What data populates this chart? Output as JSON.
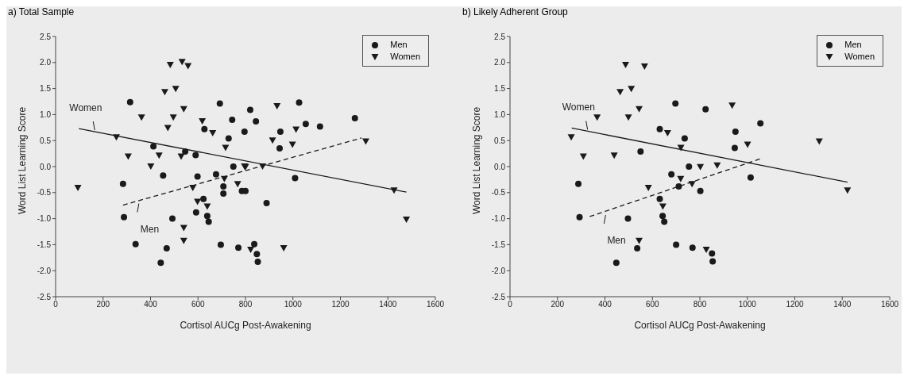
{
  "chart_data": [
    {
      "type": "scatter",
      "title": "a) Total Sample",
      "xlabel": "Cortisol AUCg Post-Awakening",
      "ylabel": "Word List Learning Score",
      "xlim": [
        0,
        1600
      ],
      "xticks": [
        0,
        200,
        400,
        600,
        800,
        1000,
        1200,
        1400,
        1600
      ],
      "ylim": [
        -2.5,
        2.5
      ],
      "yticks": [
        {
          "value": -2.5,
          "label": "-2.5"
        },
        {
          "value": -2,
          "label": "-2.0"
        },
        {
          "value": -1.5,
          "label": "-1.5"
        },
        {
          "value": -1,
          "label": "-1.0"
        },
        {
          "value": -0.5,
          "label": "-0.5"
        },
        {
          "value": 0,
          "label": "0.0"
        },
        {
          "value": 0.5,
          "label": "0.5"
        },
        {
          "value": 1,
          "label": "1.0"
        },
        {
          "value": 1.5,
          "label": "1.5"
        },
        {
          "value": 2,
          "label": "2.0"
        },
        {
          "value": 2.5,
          "label": "2.5"
        }
      ],
      "legend": "top right",
      "series": [
        {
          "name": "Men",
          "color": "#1a1a1a",
          "marker": "circle",
          "x": [
            314,
            692,
            744,
            796,
            627,
            729,
            412,
            546,
            590,
            749,
            284,
            453,
            598,
            676,
            707,
            707,
            785,
            800,
            623,
            592,
            639,
            645,
            288,
            492,
            337,
            468,
            443,
            696,
            770,
            820,
            844,
            1026,
            947,
            1054,
            1114,
            1261,
            944,
            1009,
            889,
            837,
            848,
            852
          ],
          "values": [
            1.24,
            1.21,
            0.9,
            0.67,
            0.72,
            0.54,
            0.39,
            0.29,
            0.22,
            0,
            -0.33,
            -0.17,
            -0.19,
            -0.15,
            -0.38,
            -0.52,
            -0.47,
            -0.47,
            -0.62,
            -0.88,
            -0.95,
            -1.06,
            -0.97,
            -1,
            -1.49,
            -1.57,
            -1.85,
            -1.5,
            -1.56,
            1.09,
            0.87,
            1.23,
            0.67,
            0.82,
            0.77,
            0.93,
            0.35,
            -0.22,
            -0.7,
            -1.49,
            -1.68,
            -1.83
          ]
        },
        {
          "name": "Women",
          "color": "#1a1a1a",
          "marker": "triangle",
          "x": [
            94,
            256,
            306,
            362,
            401,
            436,
            460,
            473,
            483,
            496,
            506,
            533,
            529,
            540,
            558,
            578,
            598,
            618,
            639,
            662,
            716,
            711,
            767,
            540,
            540,
            796,
            933,
            1013,
            914,
            998,
            800,
            872,
            1426,
            1478,
            1307,
            961,
            822
          ],
          "values": [
            -0.41,
            0.56,
            0.19,
            0.94,
            0,
            0.21,
            1.43,
            0.74,
            1.95,
            0.94,
            1.49,
            2.01,
            0.19,
            1.1,
            1.93,
            -0.41,
            -0.68,
            0.87,
            -0.77,
            0.64,
            0.36,
            -0.24,
            -0.34,
            -1.18,
            -1.43,
            0,
            1.16,
            0.71,
            0.5,
            0.42,
            -0.01,
            0,
            -0.46,
            -1.02,
            0.48,
            -1.57,
            -1.6
          ]
        },
        {
          "name": "Women",
          "type": "line",
          "color": "#1a1a1a",
          "line_style": "solid",
          "x": [
            98,
            1478
          ],
          "values": [
            0.73,
            -0.49
          ]
        },
        {
          "name": "Men",
          "type": "line",
          "color": "#1a1a1a",
          "line_style": "dashed",
          "x": [
            284,
            1289
          ],
          "values": [
            -0.74,
            0.55
          ]
        }
      ]
    },
    {
      "type": "scatter",
      "title": "b) Likely Adherent Group",
      "xlabel": "Cortisol AUCg Post-Awakening",
      "ylabel": "Word List Learning Score",
      "xlim": [
        0,
        1600
      ],
      "xticks": [
        0,
        200,
        400,
        600,
        800,
        1000,
        1200,
        1400,
        1600
      ],
      "ylim": [
        -2.5,
        2.5
      ],
      "yticks": [
        {
          "value": -2.5,
          "label": "-2.5"
        },
        {
          "value": -2,
          "label": "-2.0"
        },
        {
          "value": -1.5,
          "label": "-1.5"
        },
        {
          "value": -1,
          "label": "-1.0"
        },
        {
          "value": -0.5,
          "label": "-0.5"
        },
        {
          "value": 0,
          "label": "0.0"
        },
        {
          "value": 0.5,
          "label": "0.5"
        },
        {
          "value": 1,
          "label": "1.0"
        },
        {
          "value": 1.5,
          "label": "1.5"
        },
        {
          "value": 2,
          "label": "2.0"
        },
        {
          "value": 2.5,
          "label": "2.5"
        }
      ],
      "legend": "top right",
      "series": [
        {
          "name": "Men",
          "color": "#1a1a1a",
          "marker": "circle",
          "x": [
            697,
            631,
            736,
            550,
            754,
            680,
            711,
            288,
            293,
            497,
            631,
            643,
            650,
            536,
            448,
            700,
            769,
            824,
            950,
            1055,
            947,
            1014,
            802,
            851,
            854
          ],
          "values": [
            1.21,
            0.72,
            0.54,
            0.29,
            0,
            -0.15,
            -0.38,
            -0.33,
            -0.97,
            -1,
            -0.62,
            -0.95,
            -1.06,
            -1.57,
            -1.85,
            -1.5,
            -1.56,
            1.1,
            0.67,
            0.83,
            0.36,
            -0.21,
            -0.47,
            -1.67,
            -1.82
          ]
        },
        {
          "name": "Women",
          "color": "#1a1a1a",
          "marker": "triangle",
          "x": [
            258,
            309,
            367,
            439,
            464,
            487,
            499,
            511,
            544,
            567,
            583,
            644,
            664,
            720,
            719,
            544,
            767,
            936,
            1001,
            802,
            873,
            827,
            1303,
            1422
          ],
          "values": [
            0.56,
            0.19,
            0.94,
            0.21,
            1.43,
            1.95,
            0.94,
            1.49,
            1.1,
            1.92,
            -0.41,
            -0.77,
            0.64,
            0.36,
            -0.24,
            -1.43,
            -0.34,
            1.17,
            0.42,
            -0.01,
            0.02,
            -1.6,
            0.48,
            -0.46
          ]
        },
        {
          "name": "Women",
          "type": "line",
          "color": "#1a1a1a",
          "line_style": "solid",
          "x": [
            260,
            1422
          ],
          "values": [
            0.74,
            -0.3
          ]
        },
        {
          "name": "Men",
          "type": "line",
          "color": "#1a1a1a",
          "line_style": "dashed",
          "x": [
            336,
            1055
          ],
          "values": [
            -0.96,
            0.15
          ]
        }
      ]
    }
  ]
}
